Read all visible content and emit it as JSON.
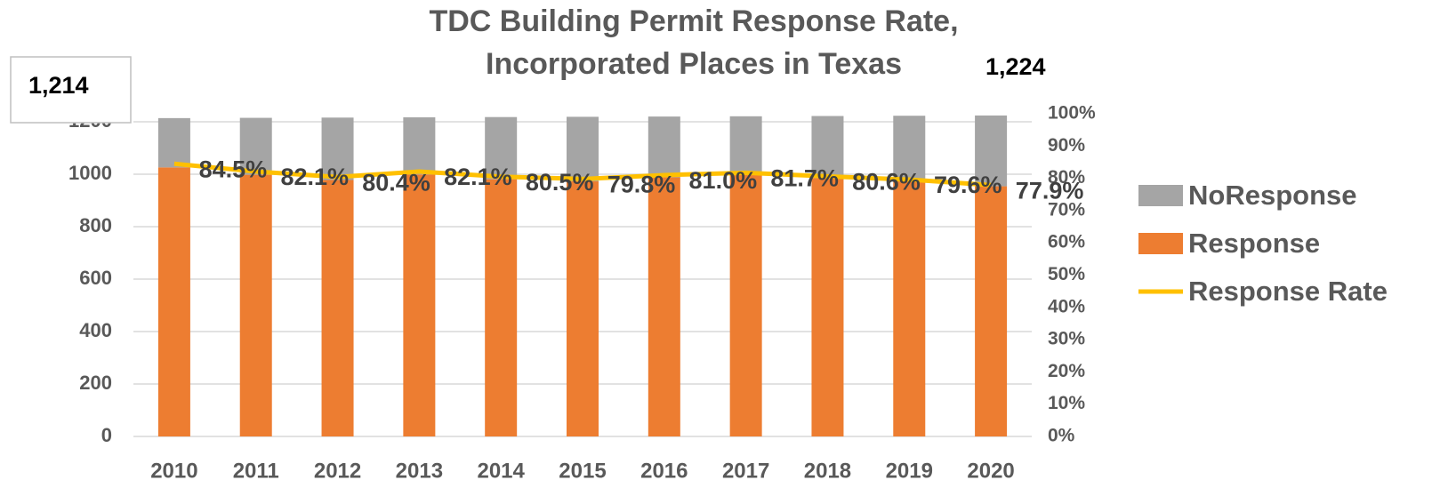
{
  "chart_data": {
    "type": "bar",
    "stacked": true,
    "title": [
      "TDC Building Permit Response Rate,",
      "Incorporated Places in Texas"
    ],
    "annotations": [
      "1,214",
      "1,224"
    ],
    "categories": [
      "2010",
      "2011",
      "2012",
      "2013",
      "2014",
      "2015",
      "2016",
      "2017",
      "2018",
      "2019",
      "2020"
    ],
    "series": [
      {
        "name": "NoResponse",
        "color": "#a5a5a5",
        "values": [
          188,
          217,
          238,
          218,
          237,
          246,
          232,
          223,
          237,
          249,
          270
        ]
      },
      {
        "name": "Response",
        "color": "#ed7d31",
        "values": [
          1026,
          998,
          978,
          999,
          981,
          973,
          988,
          998,
          985,
          974,
          954
        ]
      },
      {
        "name": "Response Rate",
        "color": "#ffc000",
        "type": "line",
        "axis": "y2",
        "values": [
          84.5,
          82.1,
          80.4,
          82.1,
          80.5,
          79.8,
          81.0,
          81.7,
          80.6,
          79.6,
          77.9
        ],
        "value_labels": [
          "84.5%",
          "82.1%",
          "80.4%",
          "82.1%",
          "80.5%",
          "79.8%",
          "81.0%",
          "81.7%",
          "80.6%",
          "79.6%",
          "77.9%"
        ]
      }
    ],
    "ylim": [
      0,
      1200
    ],
    "yticks": [
      0,
      200,
      400,
      600,
      800,
      1000,
      1200
    ],
    "y2lim": [
      0,
      100
    ],
    "y2ticks": [
      {
        "value": 0,
        "label": "0%"
      },
      {
        "value": 10,
        "label": "10%"
      },
      {
        "value": 20,
        "label": "20%"
      },
      {
        "value": 30,
        "label": "30%"
      },
      {
        "value": 40,
        "label": "40%"
      },
      {
        "value": 50,
        "label": "50%"
      },
      {
        "value": 60,
        "label": "60%"
      },
      {
        "value": 70,
        "label": "70%"
      },
      {
        "value": 80,
        "label": "80%"
      },
      {
        "value": 90,
        "label": "90%"
      },
      {
        "value": 100,
        "label": "100%"
      }
    ],
    "grid": true,
    "legend": "right"
  }
}
